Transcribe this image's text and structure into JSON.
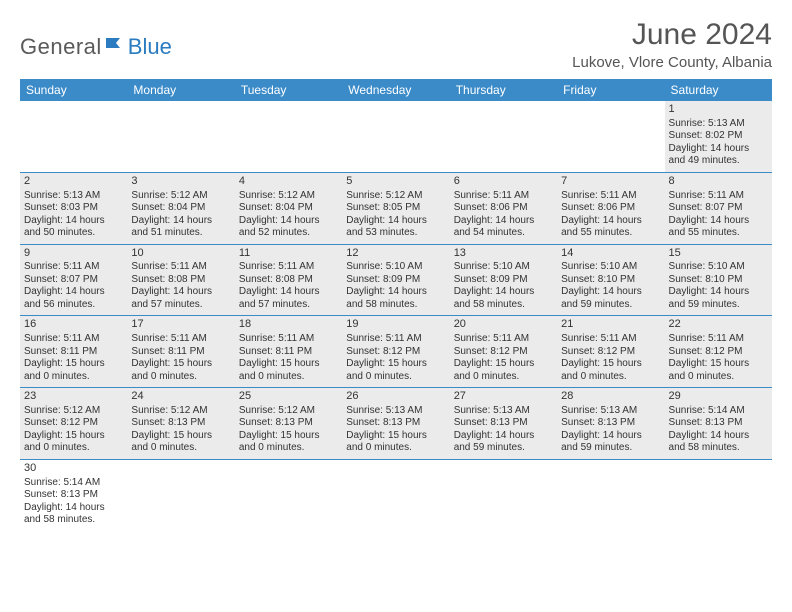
{
  "logo": {
    "general": "General",
    "blue": "Blue"
  },
  "title": "June 2024",
  "location": "Lukove, Vlore County, Albania",
  "colors": {
    "header_bg": "#3b8bc9",
    "header_text": "#ffffff",
    "cell_bg": "#ebebeb",
    "border": "#3b8bc9",
    "text": "#333333"
  },
  "weekdays": [
    "Sunday",
    "Monday",
    "Tuesday",
    "Wednesday",
    "Thursday",
    "Friday",
    "Saturday"
  ],
  "weeks": [
    [
      null,
      null,
      null,
      null,
      null,
      null,
      {
        "n": "1",
        "sr": "5:13 AM",
        "ss": "8:02 PM",
        "dl": "14 hours and 49 minutes."
      }
    ],
    [
      {
        "n": "2",
        "sr": "5:13 AM",
        "ss": "8:03 PM",
        "dl": "14 hours and 50 minutes."
      },
      {
        "n": "3",
        "sr": "5:12 AM",
        "ss": "8:04 PM",
        "dl": "14 hours and 51 minutes."
      },
      {
        "n": "4",
        "sr": "5:12 AM",
        "ss": "8:04 PM",
        "dl": "14 hours and 52 minutes."
      },
      {
        "n": "5",
        "sr": "5:12 AM",
        "ss": "8:05 PM",
        "dl": "14 hours and 53 minutes."
      },
      {
        "n": "6",
        "sr": "5:11 AM",
        "ss": "8:06 PM",
        "dl": "14 hours and 54 minutes."
      },
      {
        "n": "7",
        "sr": "5:11 AM",
        "ss": "8:06 PM",
        "dl": "14 hours and 55 minutes."
      },
      {
        "n": "8",
        "sr": "5:11 AM",
        "ss": "8:07 PM",
        "dl": "14 hours and 55 minutes."
      }
    ],
    [
      {
        "n": "9",
        "sr": "5:11 AM",
        "ss": "8:07 PM",
        "dl": "14 hours and 56 minutes."
      },
      {
        "n": "10",
        "sr": "5:11 AM",
        "ss": "8:08 PM",
        "dl": "14 hours and 57 minutes."
      },
      {
        "n": "11",
        "sr": "5:11 AM",
        "ss": "8:08 PM",
        "dl": "14 hours and 57 minutes."
      },
      {
        "n": "12",
        "sr": "5:10 AM",
        "ss": "8:09 PM",
        "dl": "14 hours and 58 minutes."
      },
      {
        "n": "13",
        "sr": "5:10 AM",
        "ss": "8:09 PM",
        "dl": "14 hours and 58 minutes."
      },
      {
        "n": "14",
        "sr": "5:10 AM",
        "ss": "8:10 PM",
        "dl": "14 hours and 59 minutes."
      },
      {
        "n": "15",
        "sr": "5:10 AM",
        "ss": "8:10 PM",
        "dl": "14 hours and 59 minutes."
      }
    ],
    [
      {
        "n": "16",
        "sr": "5:11 AM",
        "ss": "8:11 PM",
        "dl": "15 hours and 0 minutes."
      },
      {
        "n": "17",
        "sr": "5:11 AM",
        "ss": "8:11 PM",
        "dl": "15 hours and 0 minutes."
      },
      {
        "n": "18",
        "sr": "5:11 AM",
        "ss": "8:11 PM",
        "dl": "15 hours and 0 minutes."
      },
      {
        "n": "19",
        "sr": "5:11 AM",
        "ss": "8:12 PM",
        "dl": "15 hours and 0 minutes."
      },
      {
        "n": "20",
        "sr": "5:11 AM",
        "ss": "8:12 PM",
        "dl": "15 hours and 0 minutes."
      },
      {
        "n": "21",
        "sr": "5:11 AM",
        "ss": "8:12 PM",
        "dl": "15 hours and 0 minutes."
      },
      {
        "n": "22",
        "sr": "5:11 AM",
        "ss": "8:12 PM",
        "dl": "15 hours and 0 minutes."
      }
    ],
    [
      {
        "n": "23",
        "sr": "5:12 AM",
        "ss": "8:12 PM",
        "dl": "15 hours and 0 minutes."
      },
      {
        "n": "24",
        "sr": "5:12 AM",
        "ss": "8:13 PM",
        "dl": "15 hours and 0 minutes."
      },
      {
        "n": "25",
        "sr": "5:12 AM",
        "ss": "8:13 PM",
        "dl": "15 hours and 0 minutes."
      },
      {
        "n": "26",
        "sr": "5:13 AM",
        "ss": "8:13 PM",
        "dl": "15 hours and 0 minutes."
      },
      {
        "n": "27",
        "sr": "5:13 AM",
        "ss": "8:13 PM",
        "dl": "14 hours and 59 minutes."
      },
      {
        "n": "28",
        "sr": "5:13 AM",
        "ss": "8:13 PM",
        "dl": "14 hours and 59 minutes."
      },
      {
        "n": "29",
        "sr": "5:14 AM",
        "ss": "8:13 PM",
        "dl": "14 hours and 58 minutes."
      }
    ],
    [
      {
        "n": "30",
        "sr": "5:14 AM",
        "ss": "8:13 PM",
        "dl": "14 hours and 58 minutes."
      },
      null,
      null,
      null,
      null,
      null,
      null
    ]
  ],
  "labels": {
    "sunrise": "Sunrise:",
    "sunset": "Sunset:",
    "daylight": "Daylight:"
  }
}
